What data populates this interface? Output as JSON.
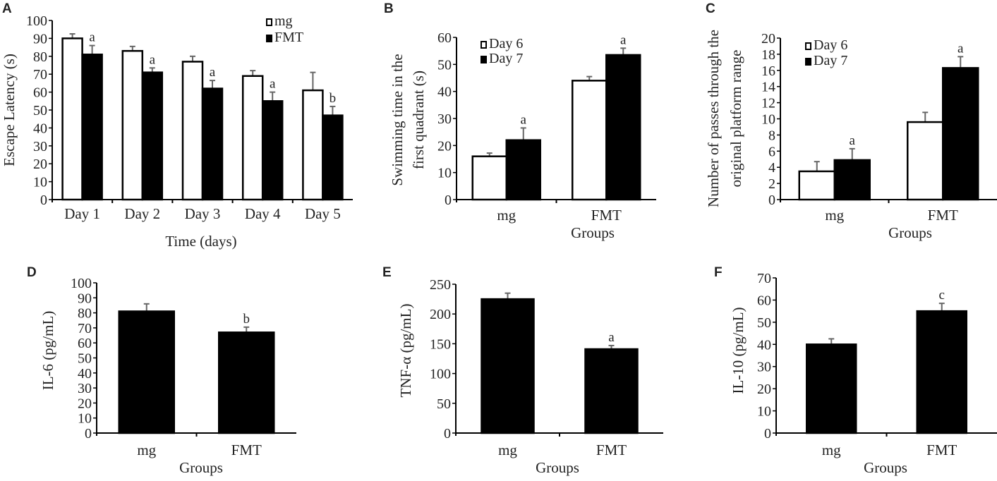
{
  "chart_data": [
    {
      "id": "A",
      "type": "bar",
      "panel_label": "A",
      "title": "",
      "xlabel": "Time (days)",
      "ylabel": "Escape Latency (s)",
      "categories": [
        "Day 1",
        "Day 2",
        "Day 3",
        "Day 4",
        "Day 5"
      ],
      "series": [
        {
          "name": "mg",
          "fill": "#ffffff",
          "values": [
            90,
            83,
            77,
            69,
            61
          ],
          "errors": [
            2.5,
            2.5,
            3,
            3,
            10
          ]
        },
        {
          "name": "FMT",
          "fill": "#000000",
          "values": [
            81,
            71,
            62,
            55,
            47
          ],
          "errors": [
            5,
            2.5,
            4.5,
            5,
            5
          ]
        }
      ],
      "significance": [
        "a",
        "a",
        "a",
        "a",
        "b"
      ],
      "significance_series": "FMT",
      "ylim": [
        0,
        100
      ],
      "yticks": [
        0,
        10,
        20,
        30,
        40,
        50,
        60,
        70,
        80,
        90,
        100
      ],
      "grid": false,
      "legend": {
        "position": "top-right",
        "entries": [
          "mg",
          "FMT"
        ]
      }
    },
    {
      "id": "B",
      "type": "bar",
      "panel_label": "B",
      "title": "",
      "xlabel": "Groups",
      "ylabel": "Swimming time in the first quadrant (s)",
      "ylabel_lines": [
        "Swimming time in the",
        "first quadrant (s)"
      ],
      "categories": [
        "mg",
        "FMT"
      ],
      "series": [
        {
          "name": "Day 6",
          "fill": "#ffffff",
          "values": [
            16,
            44
          ],
          "errors": [
            1.2,
            1.5
          ]
        },
        {
          "name": "Day 7",
          "fill": "#000000",
          "values": [
            22,
            53.5
          ],
          "errors": [
            4.5,
            2.5
          ]
        }
      ],
      "significance": [
        "a",
        "a"
      ],
      "significance_series": "Day 7",
      "ylim": [
        0,
        60
      ],
      "yticks": [
        0,
        10,
        20,
        30,
        40,
        50,
        60
      ],
      "grid": false,
      "legend": {
        "position": "top-left",
        "entries": [
          "Day 6",
          "Day 7"
        ]
      }
    },
    {
      "id": "C",
      "type": "bar",
      "panel_label": "C",
      "title": "",
      "xlabel": "Groups",
      "ylabel": "Number of passes through the original platform range",
      "ylabel_lines": [
        "Number of passes through the",
        "original platform range"
      ],
      "categories": [
        "mg",
        "FMT"
      ],
      "series": [
        {
          "name": "Day 6",
          "fill": "#ffffff",
          "values": [
            3.5,
            9.6
          ],
          "errors": [
            1.2,
            1.2
          ]
        },
        {
          "name": "Day 7",
          "fill": "#000000",
          "values": [
            4.9,
            16.3
          ],
          "errors": [
            1.4,
            1.4
          ]
        }
      ],
      "significance": [
        "a",
        "a"
      ],
      "significance_series": "Day 7",
      "ylim": [
        0,
        20
      ],
      "yticks": [
        0,
        2,
        4,
        6,
        8,
        10,
        12,
        14,
        16,
        18,
        20
      ],
      "grid": false,
      "legend": {
        "position": "top-left",
        "entries": [
          "Day 6",
          "Day 7"
        ]
      }
    },
    {
      "id": "D",
      "type": "bar",
      "panel_label": "D",
      "title": "",
      "xlabel": "Groups",
      "ylabel": "IL-6 (pg/mL)",
      "categories": [
        "mg",
        "FMT"
      ],
      "series": [
        {
          "name": "IL-6",
          "fill": "#000000",
          "values": [
            81,
            67
          ],
          "errors": [
            5,
            3.5
          ]
        }
      ],
      "significance": [
        "",
        "b"
      ],
      "significance_series": "IL-6",
      "ylim": [
        0,
        100
      ],
      "yticks": [
        0,
        10,
        20,
        30,
        40,
        50,
        60,
        70,
        80,
        90,
        100
      ],
      "grid": false,
      "legend": null
    },
    {
      "id": "E",
      "type": "bar",
      "panel_label": "E",
      "title": "",
      "xlabel": "Groups",
      "ylabel": "TNF-α (pg/mL)",
      "categories": [
        "mg",
        "FMT"
      ],
      "series": [
        {
          "name": "TNF-α",
          "fill": "#000000",
          "values": [
            225,
            141
          ],
          "errors": [
            10,
            6
          ]
        }
      ],
      "significance": [
        "",
        "a"
      ],
      "significance_series": "TNF-α",
      "ylim": [
        0,
        250
      ],
      "yticks": [
        0,
        50,
        100,
        150,
        200,
        250
      ],
      "grid": false,
      "legend": null
    },
    {
      "id": "F",
      "type": "bar",
      "panel_label": "F",
      "title": "",
      "xlabel": "Groups",
      "ylabel": "IL-10 (pg/mL)",
      "categories": [
        "mg",
        "FMT"
      ],
      "series": [
        {
          "name": "IL-10",
          "fill": "#000000",
          "values": [
            40,
            55
          ],
          "errors": [
            2.5,
            3.5
          ]
        }
      ],
      "significance": [
        "",
        "c"
      ],
      "significance_series": "IL-10",
      "ylim": [
        0,
        70
      ],
      "yticks": [
        0,
        10,
        20,
        30,
        40,
        50,
        60,
        70
      ],
      "grid": false,
      "legend": null
    }
  ]
}
